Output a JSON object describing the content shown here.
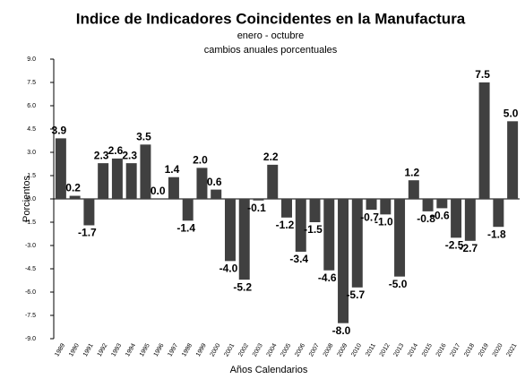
{
  "chart_data": {
    "type": "bar",
    "title": "Indice de Indicadores Coincidentes en la Manufactura",
    "subtitle": [
      "enero - octubre",
      "cambios anuales porcentuales"
    ],
    "x_label": "Años Calendarios",
    "y_label": "Porcientos",
    "categories": [
      "1989",
      "1990",
      "1991",
      "1992",
      "1993",
      "1994",
      "1995",
      "1996",
      "1997",
      "1998",
      "1999",
      "2000",
      "2001",
      "2002",
      "2003",
      "2004",
      "2005",
      "2006",
      "2007",
      "2008",
      "2009",
      "2010",
      "2011",
      "2012",
      "2013",
      "2014",
      "2015",
      "2016",
      "2017",
      "2018",
      "2019",
      "2020",
      "2021"
    ],
    "values": [
      3.9,
      0.2,
      -1.7,
      2.3,
      2.6,
      2.3,
      3.5,
      0,
      1.4,
      -1.4,
      2,
      0.6,
      -4,
      -5.2,
      -0.1,
      2.2,
      -1.2,
      -3.4,
      -1.5,
      -4.6,
      -8,
      -5.7,
      -0.7,
      -1,
      -5,
      1.2,
      -0.8,
      -0.6,
      -2.5,
      -2.7,
      7.5,
      -1.8,
      5
    ],
    "value_labels": [
      "3.9",
      "0.2",
      "-1.7",
      "2.3",
      "2.6",
      "2.3",
      "3.5",
      "0.0",
      "1.4",
      "-1.4",
      "2.0",
      "0.6",
      "-4.0",
      "-5.2",
      "-0.1",
      "2.2",
      "-1.2",
      "-3.4",
      "-1.5",
      "-4.6",
      "-8.0",
      "-5.7",
      "-0.7",
      "-1.0",
      "-5.0",
      "1.2",
      "-0.8",
      "-0.6",
      "-2.5",
      "-2.7",
      "7.5",
      "-1.8",
      "5.0"
    ],
    "color": "#404040",
    "ylim": [
      -9,
      9
    ],
    "yticks": [
      {
        "value": 9,
        "label": "9.0"
      },
      7.5,
      {
        "value": 6,
        "label": "6.0"
      },
      4.5,
      {
        "value": 3,
        "label": "3.0"
      },
      1.5,
      {
        "value": 0,
        "label": "0.0"
      },
      -1.5,
      {
        "value": -3,
        "label": "-3.0"
      },
      -4.5,
      {
        "value": -6,
        "label": "-6.0"
      },
      -7.5,
      {
        "value": -9,
        "label": "-9.0"
      }
    ],
    "grid": false
  }
}
